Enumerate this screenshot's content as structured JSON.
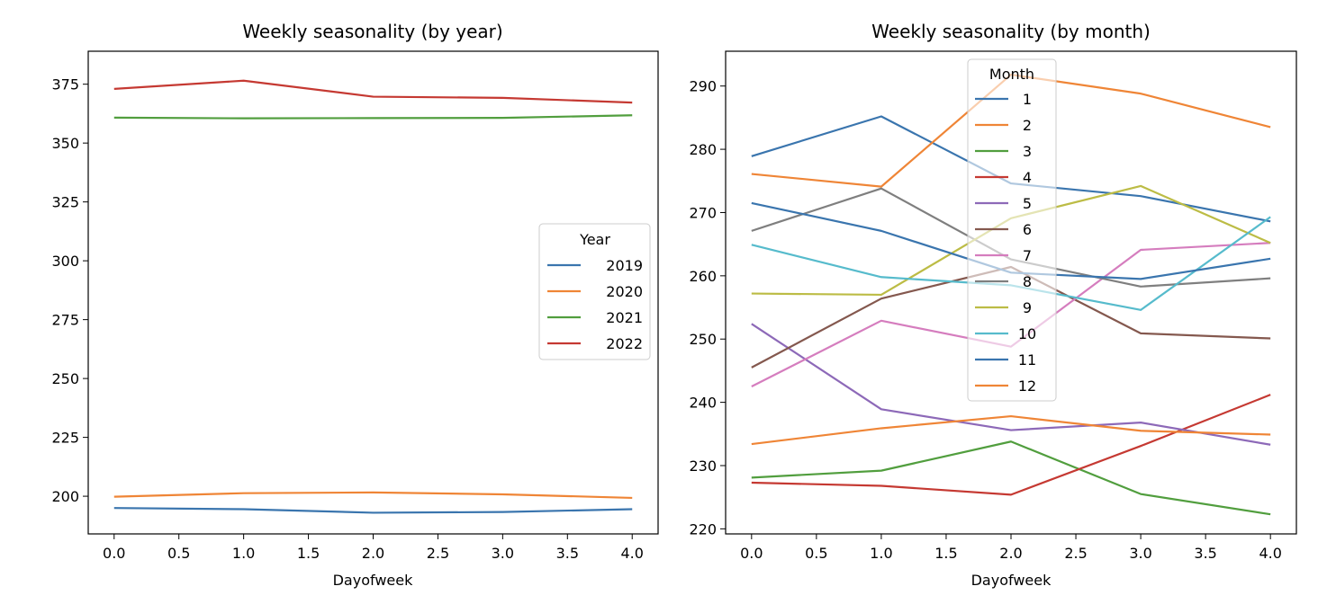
{
  "chart_data": [
    {
      "type": "line",
      "title": "Weekly seasonality (by year)",
      "xlabel": "Dayofweek",
      "ylabel": "",
      "x": [
        0,
        1,
        2,
        3,
        4
      ],
      "xlim": [
        -0.2,
        4.2
      ],
      "ylim": [
        184,
        389
      ],
      "xticks": [
        0.0,
        0.5,
        1.0,
        1.5,
        2.0,
        2.5,
        3.0,
        3.5,
        4.0
      ],
      "xtick_labels": [
        "0.0",
        "0.5",
        "1.0",
        "1.5",
        "2.0",
        "2.5",
        "3.0",
        "3.5",
        "4.0"
      ],
      "yticks": [
        200,
        225,
        250,
        275,
        300,
        325,
        350,
        375
      ],
      "ytick_labels": [
        "200",
        "225",
        "250",
        "275",
        "300",
        "325",
        "350",
        "375"
      ],
      "grid": false,
      "legend": {
        "title": "Year",
        "placement": "center-right"
      },
      "series": [
        {
          "name": "2019",
          "color": "#3a75ae",
          "values": [
            195.0,
            194.5,
            193.0,
            193.3,
            194.5
          ]
        },
        {
          "name": "2020",
          "color": "#ef8536",
          "values": [
            199.8,
            201.3,
            201.6,
            200.8,
            199.3
          ]
        },
        {
          "name": "2021",
          "color": "#519e3e",
          "values": [
            360.8,
            360.5,
            360.6,
            360.7,
            361.8
          ]
        },
        {
          "name": "2022",
          "color": "#c53932",
          "values": [
            373.0,
            376.5,
            369.7,
            369.2,
            367.2
          ]
        }
      ]
    },
    {
      "type": "line",
      "title": "Weekly seasonality (by month)",
      "xlabel": "Dayofweek",
      "ylabel": "",
      "x": [
        0,
        1,
        2,
        3,
        4
      ],
      "xlim": [
        -0.2,
        4.2
      ],
      "ylim": [
        219.2,
        295.5
      ],
      "xticks": [
        0.0,
        0.5,
        1.0,
        1.5,
        2.0,
        2.5,
        3.0,
        3.5,
        4.0
      ],
      "xtick_labels": [
        "0.0",
        "0.5",
        "1.0",
        "1.5",
        "2.0",
        "2.5",
        "3.0",
        "3.5",
        "4.0"
      ],
      "yticks": [
        220,
        230,
        240,
        250,
        260,
        270,
        280,
        290
      ],
      "ytick_labels": [
        "220",
        "230",
        "240",
        "250",
        "260",
        "270",
        "280",
        "290"
      ],
      "grid": false,
      "legend": {
        "title": "Month",
        "placement": "upper-center"
      },
      "series": [
        {
          "name": "1",
          "color": "#3a75ae",
          "values": [
            278.9,
            285.2,
            274.6,
            272.6,
            268.6
          ]
        },
        {
          "name": "2",
          "color": "#ef8536",
          "values": [
            276.1,
            274.1,
            291.8,
            288.8,
            283.5
          ]
        },
        {
          "name": "3",
          "color": "#519e3e",
          "values": [
            228.1,
            229.2,
            233.8,
            225.5,
            222.3
          ]
        },
        {
          "name": "4",
          "color": "#c53932",
          "values": [
            227.3,
            226.8,
            225.4,
            233.1,
            241.2
          ]
        },
        {
          "name": "5",
          "color": "#8d69b8",
          "values": [
            252.4,
            238.9,
            235.6,
            236.8,
            233.3
          ]
        },
        {
          "name": "6",
          "color": "#84584e",
          "values": [
            245.5,
            256.4,
            261.4,
            250.9,
            250.1
          ]
        },
        {
          "name": "7",
          "color": "#d57dbe",
          "values": [
            242.5,
            252.9,
            248.8,
            264.1,
            265.2
          ]
        },
        {
          "name": "8",
          "color": "#7f7f7f",
          "values": [
            267.1,
            273.8,
            262.6,
            258.3,
            259.6
          ]
        },
        {
          "name": "9",
          "color": "#bcbc45",
          "values": [
            257.2,
            257.0,
            269.1,
            274.2,
            265.2
          ]
        },
        {
          "name": "10",
          "color": "#56bbcc",
          "values": [
            264.9,
            259.8,
            258.5,
            254.6,
            269.3
          ]
        },
        {
          "name": "11",
          "color": "#3a75ae",
          "values": [
            271.5,
            267.1,
            260.5,
            259.5,
            262.7
          ]
        },
        {
          "name": "12",
          "color": "#ef8536",
          "values": [
            233.4,
            235.9,
            237.8,
            235.5,
            234.9
          ]
        }
      ]
    }
  ]
}
